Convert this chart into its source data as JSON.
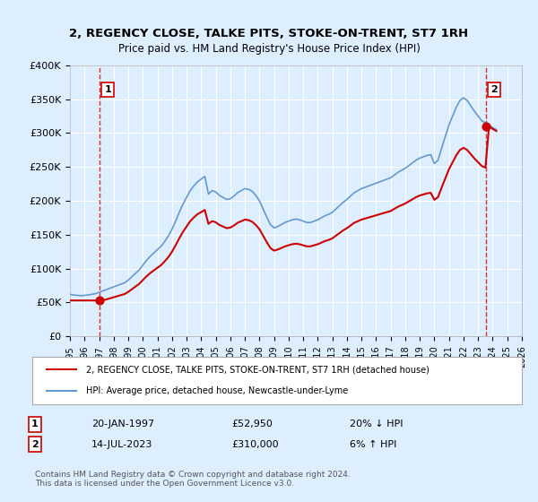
{
  "title": "2, REGENCY CLOSE, TALKE PITS, STOKE-ON-TRENT, ST7 1RH",
  "subtitle": "Price paid vs. HM Land Registry's House Price Index (HPI)",
  "bg_color": "#ddeeff",
  "plot_bg_color": "#ddeeff",
  "ylabel_values": [
    "£0",
    "£50K",
    "£100K",
    "£150K",
    "£200K",
    "£250K",
    "£300K",
    "£350K",
    "£400K"
  ],
  "ylim": [
    0,
    400000
  ],
  "xlim_start": 1995,
  "xlim_end": 2026,
  "xtick_years": [
    1995,
    1996,
    1997,
    1998,
    1999,
    2000,
    2001,
    2002,
    2003,
    2004,
    2005,
    2006,
    2007,
    2008,
    2009,
    2010,
    2011,
    2012,
    2013,
    2014,
    2015,
    2016,
    2017,
    2018,
    2019,
    2020,
    2021,
    2022,
    2023,
    2024,
    2025,
    2026
  ],
  "hpi_color": "#6699cc",
  "price_color": "#cc0000",
  "transaction1_year": 1997.05,
  "transaction1_price": 52950,
  "transaction1_label": "1",
  "transaction2_year": 2023.54,
  "transaction2_price": 310000,
  "transaction2_label": "2",
  "legend_line1": "2, REGENCY CLOSE, TALKE PITS, STOKE-ON-TRENT, ST7 1RH (detached house)",
  "legend_line2": "HPI: Average price, detached house, Newcastle-under-Lyme",
  "table_row1_num": "1",
  "table_row1_date": "20-JAN-1997",
  "table_row1_price": "£52,950",
  "table_row1_hpi": "20% ↓ HPI",
  "table_row2_num": "2",
  "table_row2_date": "14-JUL-2023",
  "table_row2_price": "£310,000",
  "table_row2_hpi": "6% ↑ HPI",
  "footer": "Contains HM Land Registry data © Crown copyright and database right 2024.\nThis data is licensed under the Open Government Licence v3.0.",
  "grid_color": "#ffffff",
  "vline_color": "#cc0000",
  "hpi_data_years": [
    1995.0,
    1995.25,
    1995.5,
    1995.75,
    1996.0,
    1996.25,
    1996.5,
    1996.75,
    1997.0,
    1997.25,
    1997.5,
    1997.75,
    1998.0,
    1998.25,
    1998.5,
    1998.75,
    1999.0,
    1999.25,
    1999.5,
    1999.75,
    2000.0,
    2000.25,
    2000.5,
    2000.75,
    2001.0,
    2001.25,
    2001.5,
    2001.75,
    2002.0,
    2002.25,
    2002.5,
    2002.75,
    2003.0,
    2003.25,
    2003.5,
    2003.75,
    2004.0,
    2004.25,
    2004.5,
    2004.75,
    2005.0,
    2005.25,
    2005.5,
    2005.75,
    2006.0,
    2006.25,
    2006.5,
    2006.75,
    2007.0,
    2007.25,
    2007.5,
    2007.75,
    2008.0,
    2008.25,
    2008.5,
    2008.75,
    2009.0,
    2009.25,
    2009.5,
    2009.75,
    2010.0,
    2010.25,
    2010.5,
    2010.75,
    2011.0,
    2011.25,
    2011.5,
    2011.75,
    2012.0,
    2012.25,
    2012.5,
    2012.75,
    2013.0,
    2013.25,
    2013.5,
    2013.75,
    2014.0,
    2014.25,
    2014.5,
    2014.75,
    2015.0,
    2015.25,
    2015.5,
    2015.75,
    2016.0,
    2016.25,
    2016.5,
    2016.75,
    2017.0,
    2017.25,
    2017.5,
    2017.75,
    2018.0,
    2018.25,
    2018.5,
    2018.75,
    2019.0,
    2019.25,
    2019.5,
    2019.75,
    2020.0,
    2020.25,
    2020.5,
    2020.75,
    2021.0,
    2021.25,
    2021.5,
    2021.75,
    2022.0,
    2022.25,
    2022.5,
    2022.75,
    2023.0,
    2023.25,
    2023.5,
    2023.75,
    2024.0,
    2024.25
  ],
  "hpi_data_values": [
    62000,
    61000,
    60500,
    60000,
    60500,
    61000,
    62000,
    63000,
    65000,
    67000,
    69000,
    71000,
    73000,
    75000,
    77000,
    79000,
    83000,
    88000,
    93000,
    98000,
    105000,
    112000,
    118000,
    123000,
    128000,
    133000,
    140000,
    148000,
    158000,
    170000,
    183000,
    195000,
    205000,
    215000,
    222000,
    228000,
    232000,
    236000,
    210000,
    215000,
    213000,
    208000,
    205000,
    202000,
    203000,
    207000,
    212000,
    215000,
    218000,
    217000,
    214000,
    208000,
    200000,
    188000,
    176000,
    165000,
    160000,
    162000,
    165000,
    168000,
    170000,
    172000,
    173000,
    172000,
    170000,
    168000,
    168000,
    170000,
    172000,
    175000,
    178000,
    180000,
    183000,
    188000,
    193000,
    198000,
    202000,
    207000,
    212000,
    215000,
    218000,
    220000,
    222000,
    224000,
    226000,
    228000,
    230000,
    232000,
    234000,
    238000,
    242000,
    245000,
    248000,
    252000,
    256000,
    260000,
    263000,
    265000,
    267000,
    268000,
    255000,
    260000,
    278000,
    295000,
    312000,
    325000,
    338000,
    348000,
    352000,
    348000,
    340000,
    332000,
    325000,
    318000,
    315000,
    312000,
    308000,
    305000
  ],
  "price_data_years": [
    1997.05,
    2023.54
  ],
  "price_data_values": [
    52950,
    310000
  ]
}
